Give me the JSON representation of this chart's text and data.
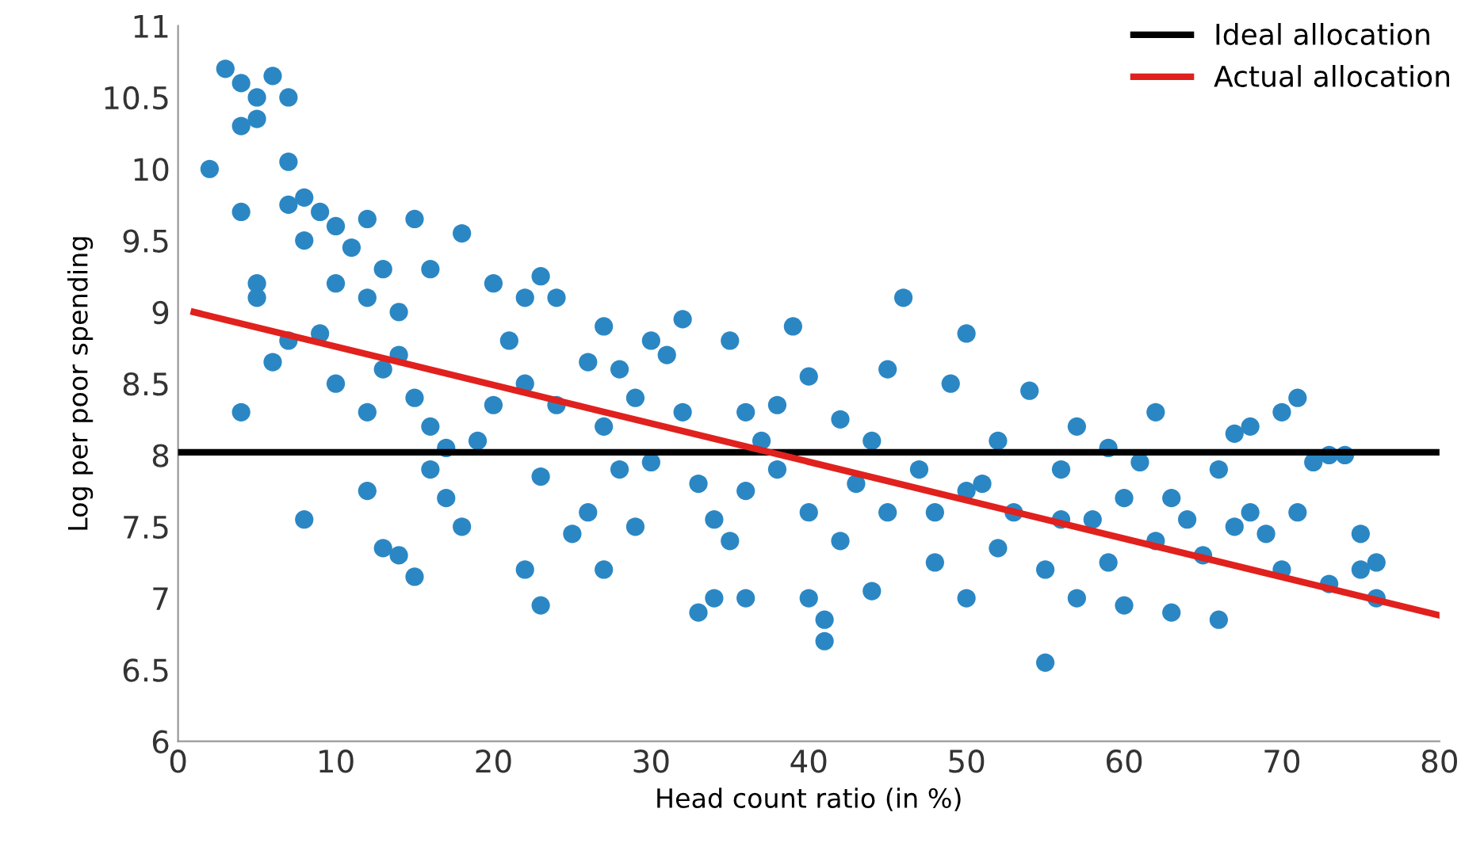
{
  "chart_data": {
    "type": "scatter",
    "xlabel": "Head count ratio (in %)",
    "ylabel": "Log per poor spending",
    "xlim": [
      0,
      80
    ],
    "ylim": [
      6,
      11
    ],
    "xticks": [
      0,
      10,
      20,
      30,
      40,
      50,
      60,
      70,
      80
    ],
    "yticks": [
      6,
      6.5,
      7,
      7.5,
      8,
      8.5,
      9,
      9.5,
      10,
      10.5,
      11
    ],
    "grid": false,
    "legend": "top right",
    "series": [
      {
        "marker": "circle",
        "color": "#2b87c4",
        "x": [
          2,
          3,
          4,
          4,
          5,
          6,
          7,
          5,
          4,
          5,
          5,
          7,
          7,
          8,
          8,
          9,
          10,
          11,
          12,
          4,
          8,
          6,
          7,
          9,
          10,
          10,
          12,
          13,
          14,
          13,
          14,
          15,
          16,
          18,
          15,
          16,
          12,
          12,
          14,
          15,
          13,
          16,
          17,
          18,
          17,
          19,
          20,
          21,
          20,
          22,
          23,
          24,
          22,
          24,
          23,
          22,
          25,
          23,
          26,
          27,
          27,
          28,
          29,
          28,
          26,
          27,
          29,
          30,
          30,
          31,
          32,
          32,
          33,
          34,
          34,
          33,
          35,
          36,
          36,
          35,
          36,
          37,
          38,
          38,
          39,
          40,
          40,
          40,
          41,
          41,
          42,
          42,
          43,
          44,
          44,
          45,
          45,
          46,
          47,
          48,
          48,
          49,
          50,
          50,
          50,
          51,
          52,
          52,
          53,
          54,
          55,
          55,
          56,
          56,
          57,
          57,
          58,
          59,
          59,
          60,
          61,
          60,
          62,
          62,
          63,
          63,
          64,
          65,
          66,
          66,
          67,
          67,
          68,
          68,
          69,
          70,
          71,
          71,
          70,
          72,
          73,
          74,
          73,
          75,
          75,
          76,
          76
        ],
        "values": [
          10.0,
          10.7,
          10.6,
          10.3,
          10.5,
          10.65,
          10.5,
          10.35,
          9.7,
          9.2,
          9.1,
          10.05,
          9.75,
          9.8,
          9.5,
          9.7,
          9.6,
          9.45,
          9.65,
          8.3,
          7.55,
          8.65,
          8.8,
          8.85,
          9.2,
          8.5,
          9.1,
          9.3,
          9.0,
          8.6,
          8.7,
          9.65,
          9.3,
          9.55,
          8.4,
          8.2,
          8.3,
          7.75,
          7.3,
          7.15,
          7.35,
          7.9,
          7.7,
          7.5,
          8.05,
          8.1,
          8.35,
          8.8,
          9.2,
          9.1,
          9.25,
          9.1,
          8.5,
          8.35,
          7.85,
          7.2,
          7.45,
          6.95,
          8.65,
          8.9,
          8.2,
          8.6,
          8.4,
          7.9,
          7.6,
          7.2,
          7.5,
          8.8,
          7.95,
          8.7,
          8.3,
          8.95,
          7.8,
          7.55,
          7.0,
          6.9,
          8.8,
          8.3,
          7.75,
          7.4,
          7.0,
          8.1,
          7.9,
          8.35,
          8.9,
          8.55,
          7.6,
          7.0,
          6.85,
          6.7,
          8.25,
          7.4,
          7.8,
          8.1,
          7.05,
          8.6,
          7.6,
          9.1,
          7.9,
          7.6,
          7.25,
          8.5,
          8.85,
          7.75,
          7.0,
          7.8,
          8.1,
          7.35,
          7.6,
          8.45,
          7.2,
          6.55,
          7.55,
          7.9,
          8.2,
          7.0,
          7.55,
          7.25,
          8.05,
          7.7,
          7.95,
          6.95,
          8.3,
          7.4,
          7.7,
          6.9,
          7.55,
          7.3,
          7.9,
          6.85,
          8.15,
          7.5,
          8.2,
          7.6,
          7.45,
          8.3,
          8.4,
          7.6,
          7.2,
          7.95,
          8.0,
          8.0,
          7.1,
          7.45,
          7.2,
          7.25,
          7.0
        ]
      },
      {
        "type": "line",
        "name": "Ideal allocation",
        "color": "#000000",
        "x": [
          0,
          80
        ],
        "values": [
          8.02,
          8.02
        ]
      },
      {
        "type": "line",
        "name": "Actual allocation",
        "color": "#e0211d",
        "x": [
          1,
          80
        ],
        "values": [
          9.0,
          6.88
        ]
      }
    ]
  }
}
